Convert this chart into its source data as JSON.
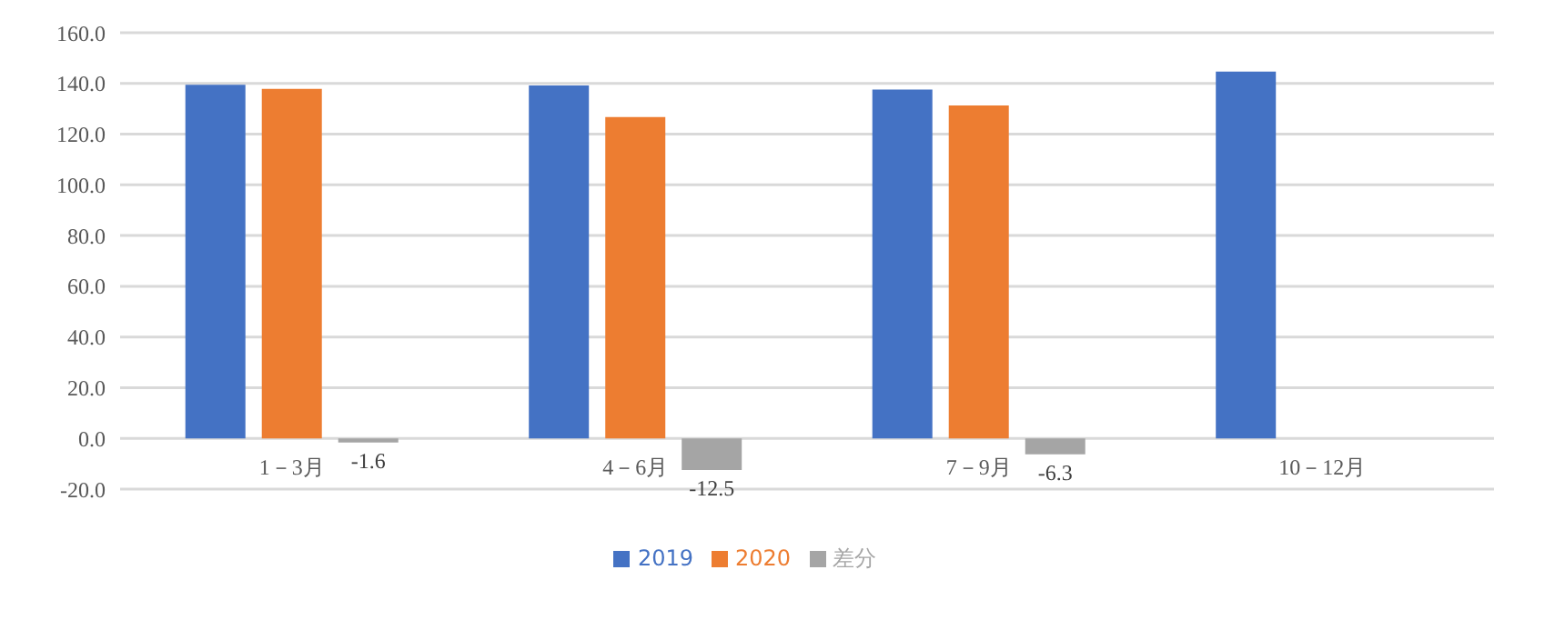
{
  "chart_data": {
    "type": "bar",
    "categories": [
      "1－3月",
      "4－6月",
      "7－9月",
      "10－12月"
    ],
    "series": [
      {
        "name": "2019",
        "color": "#4472c4",
        "values": [
          139.5,
          139.2,
          137.6,
          144.7
        ]
      },
      {
        "name": "2020",
        "color": "#ed7d31",
        "values": [
          137.9,
          126.7,
          131.3,
          null
        ]
      },
      {
        "name": "差分",
        "color": "#a5a5a5",
        "values": [
          -1.6,
          -12.5,
          -6.3,
          null
        ],
        "value_labels": [
          "-1.6",
          "-12.5",
          "-6.3",
          null
        ]
      }
    ],
    "ylim": [
      -20,
      160
    ],
    "yticks": [
      {
        "value": -20,
        "label": "-20.0"
      },
      {
        "value": 0,
        "label": "0.0"
      },
      {
        "value": 20,
        "label": "20.0"
      },
      {
        "value": 40,
        "label": "40.0"
      },
      {
        "value": 60,
        "label": "60.0"
      },
      {
        "value": 80,
        "label": "80.0"
      },
      {
        "value": 100,
        "label": "100.0"
      },
      {
        "value": 120,
        "label": "120.0"
      },
      {
        "value": 140,
        "label": "140.0"
      },
      {
        "value": 160,
        "label": "160.0"
      }
    ],
    "grid": "y",
    "legend": "bottom"
  }
}
